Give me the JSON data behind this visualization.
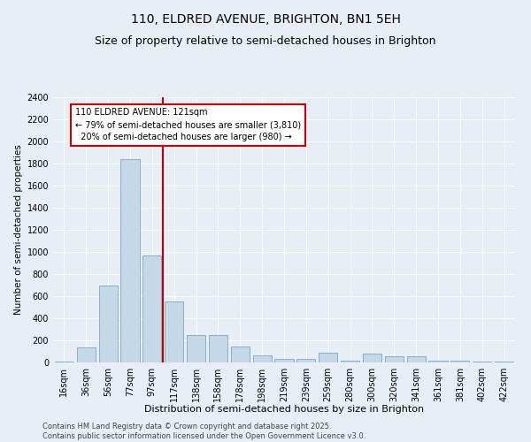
{
  "title": "110, ELDRED AVENUE, BRIGHTON, BN1 5EH",
  "subtitle": "Size of property relative to semi-detached houses in Brighton",
  "xlabel": "Distribution of semi-detached houses by size in Brighton",
  "ylabel": "Number of semi-detached properties",
  "bar_labels": [
    "16sqm",
    "36sqm",
    "56sqm",
    "77sqm",
    "97sqm",
    "117sqm",
    "138sqm",
    "158sqm",
    "178sqm",
    "198sqm",
    "219sqm",
    "239sqm",
    "259sqm",
    "280sqm",
    "300sqm",
    "320sqm",
    "341sqm",
    "361sqm",
    "381sqm",
    "402sqm",
    "422sqm"
  ],
  "bar_values": [
    10,
    140,
    700,
    1840,
    970,
    550,
    250,
    250,
    145,
    65,
    30,
    30,
    85,
    20,
    80,
    60,
    60,
    20,
    20,
    10,
    5
  ],
  "bar_color": "#c5d8e8",
  "bar_edge_color": "#7aa8c8",
  "vline_x": 4.5,
  "vline_color": "#cc0000",
  "annotation_text": "110 ELDRED AVENUE: 121sqm\n← 79% of semi-detached houses are smaller (3,810)\n  20% of semi-detached houses are larger (980) →",
  "annotation_box_color": "#cc0000",
  "annotation_text_color": "#000000",
  "ylim": [
    0,
    2400
  ],
  "yticks": [
    0,
    200,
    400,
    600,
    800,
    1000,
    1200,
    1400,
    1600,
    1800,
    2000,
    2200,
    2400
  ],
  "bg_color": "#e8eef5",
  "plot_bg_color": "#e8eef5",
  "footer_text": "Contains HM Land Registry data © Crown copyright and database right 2025.\nContains public sector information licensed under the Open Government Licence v3.0.",
  "title_fontsize": 10,
  "xlabel_fontsize": 8,
  "ylabel_fontsize": 7.5,
  "tick_fontsize": 7,
  "footer_fontsize": 6,
  "annot_fontsize": 7
}
